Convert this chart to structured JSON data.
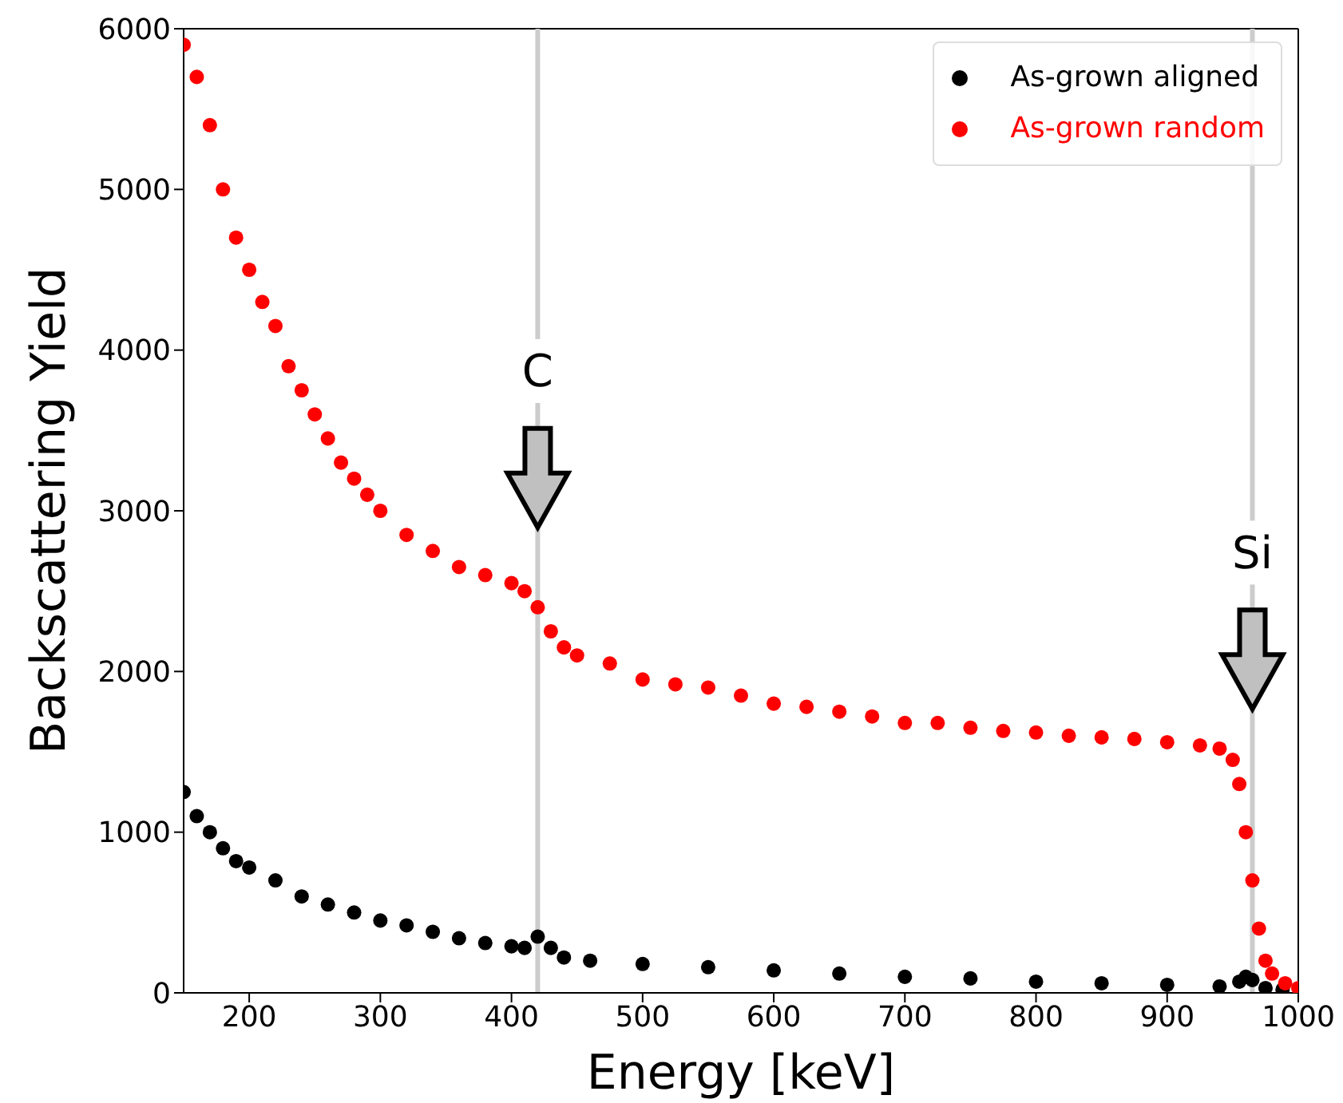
{
  "chart_data": {
    "type": "scatter",
    "xlabel": "Energy [keV]",
    "ylabel": "Backscattering Yield",
    "xlim": [
      150,
      1000
    ],
    "xticks": [
      200,
      300,
      400,
      500,
      600,
      700,
      800,
      900,
      1000
    ],
    "ylim": [
      0,
      6000
    ],
    "yticks": [
      0,
      1000,
      2000,
      3000,
      4000,
      5000,
      6000
    ],
    "grid": false,
    "legend": "top right",
    "marker": "circle",
    "series": [
      {
        "name": "As-grown aligned",
        "color": "#000000",
        "x": [
          150,
          160,
          170,
          180,
          190,
          200,
          220,
          240,
          260,
          280,
          300,
          320,
          340,
          360,
          380,
          400,
          410,
          420,
          430,
          440,
          460,
          500,
          550,
          600,
          650,
          700,
          750,
          800,
          850,
          900,
          940,
          955,
          960,
          965,
          975,
          988
        ],
        "values": [
          1250,
          1100,
          1000,
          900,
          820,
          780,
          700,
          600,
          550,
          500,
          450,
          420,
          380,
          340,
          310,
          290,
          280,
          350,
          280,
          220,
          200,
          180,
          160,
          140,
          120,
          100,
          90,
          70,
          60,
          50,
          40,
          70,
          100,
          80,
          30,
          20
        ]
      },
      {
        "name": "As-grown random",
        "color": "#ff0000",
        "x": [
          150,
          160,
          170,
          180,
          190,
          200,
          210,
          220,
          230,
          240,
          250,
          260,
          270,
          280,
          290,
          300,
          320,
          340,
          360,
          380,
          400,
          410,
          420,
          430,
          440,
          450,
          475,
          500,
          525,
          550,
          575,
          600,
          625,
          650,
          675,
          700,
          725,
          750,
          775,
          800,
          825,
          850,
          875,
          900,
          925,
          940,
          950,
          955,
          960,
          965,
          970,
          975,
          980,
          990,
          1000
        ],
        "values": [
          5900,
          5700,
          5400,
          5000,
          4700,
          4500,
          4300,
          4150,
          3900,
          3750,
          3600,
          3450,
          3300,
          3200,
          3100,
          3000,
          2850,
          2750,
          2650,
          2600,
          2550,
          2500,
          2400,
          2250,
          2150,
          2100,
          2050,
          1950,
          1920,
          1900,
          1850,
          1800,
          1780,
          1750,
          1720,
          1680,
          1680,
          1650,
          1630,
          1620,
          1600,
          1590,
          1580,
          1560,
          1540,
          1520,
          1450,
          1300,
          1000,
          700,
          400,
          200,
          120,
          60,
          30
        ]
      }
    ],
    "ref_lines": [
      {
        "axis": "x",
        "value": 420,
        "color": "#cccccc"
      },
      {
        "axis": "x",
        "value": 965,
        "color": "#cccccc"
      }
    ],
    "annotations": [
      {
        "text": "C",
        "x": 420,
        "y": 3850
      },
      {
        "text": "Si",
        "x": 965,
        "y": 2720
      }
    ]
  }
}
